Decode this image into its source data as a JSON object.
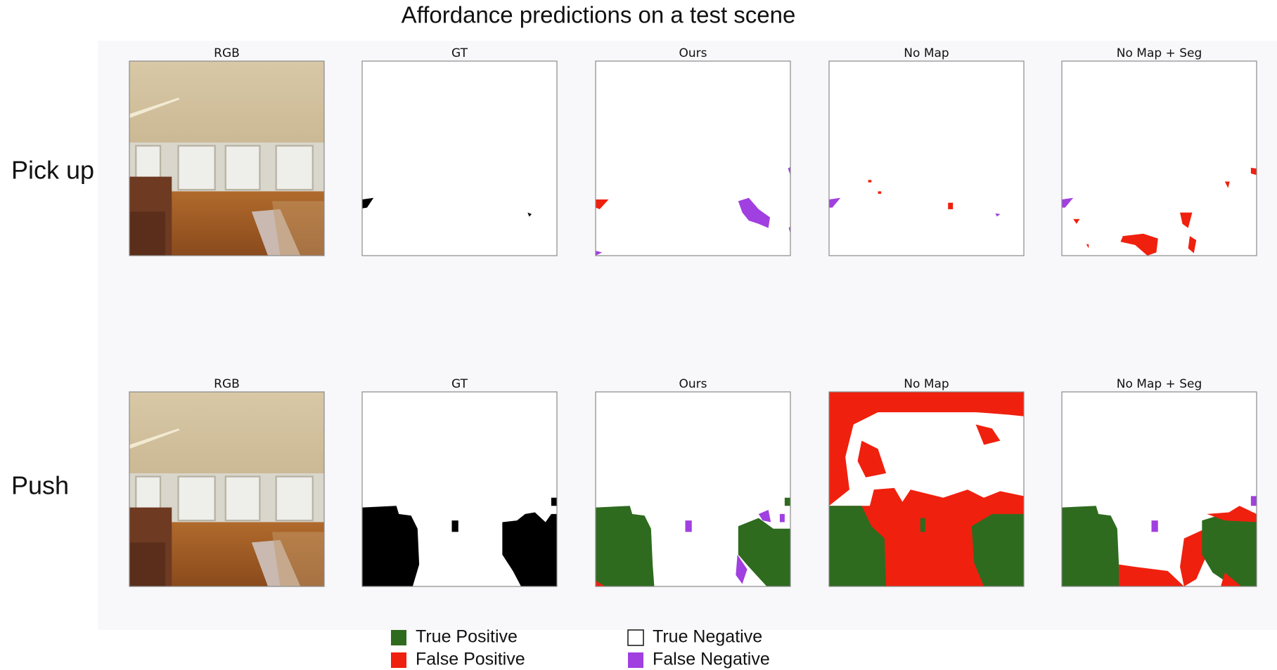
{
  "title": "Affordance predictions on a test scene",
  "rows": [
    {
      "label": "Pick up",
      "panels": [
        {
          "title": "RGB"
        },
        {
          "title": "GT"
        },
        {
          "title": "Ours"
        },
        {
          "title": "No Map"
        },
        {
          "title": "No Map + Seg"
        }
      ]
    },
    {
      "label": "Push",
      "panels": [
        {
          "title": "RGB"
        },
        {
          "title": "GT"
        },
        {
          "title": "Ours"
        },
        {
          "title": "No Map"
        },
        {
          "title": "No Map + Seg"
        }
      ]
    }
  ],
  "legend": {
    "items": [
      {
        "label": "True Positive",
        "color": "#2e6b1f"
      },
      {
        "label": "False Positive",
        "color": "#f0200e"
      },
      {
        "label": "True Negative",
        "color": "#ffffff"
      },
      {
        "label": "False Negative",
        "color": "#a040e0"
      }
    ]
  }
}
